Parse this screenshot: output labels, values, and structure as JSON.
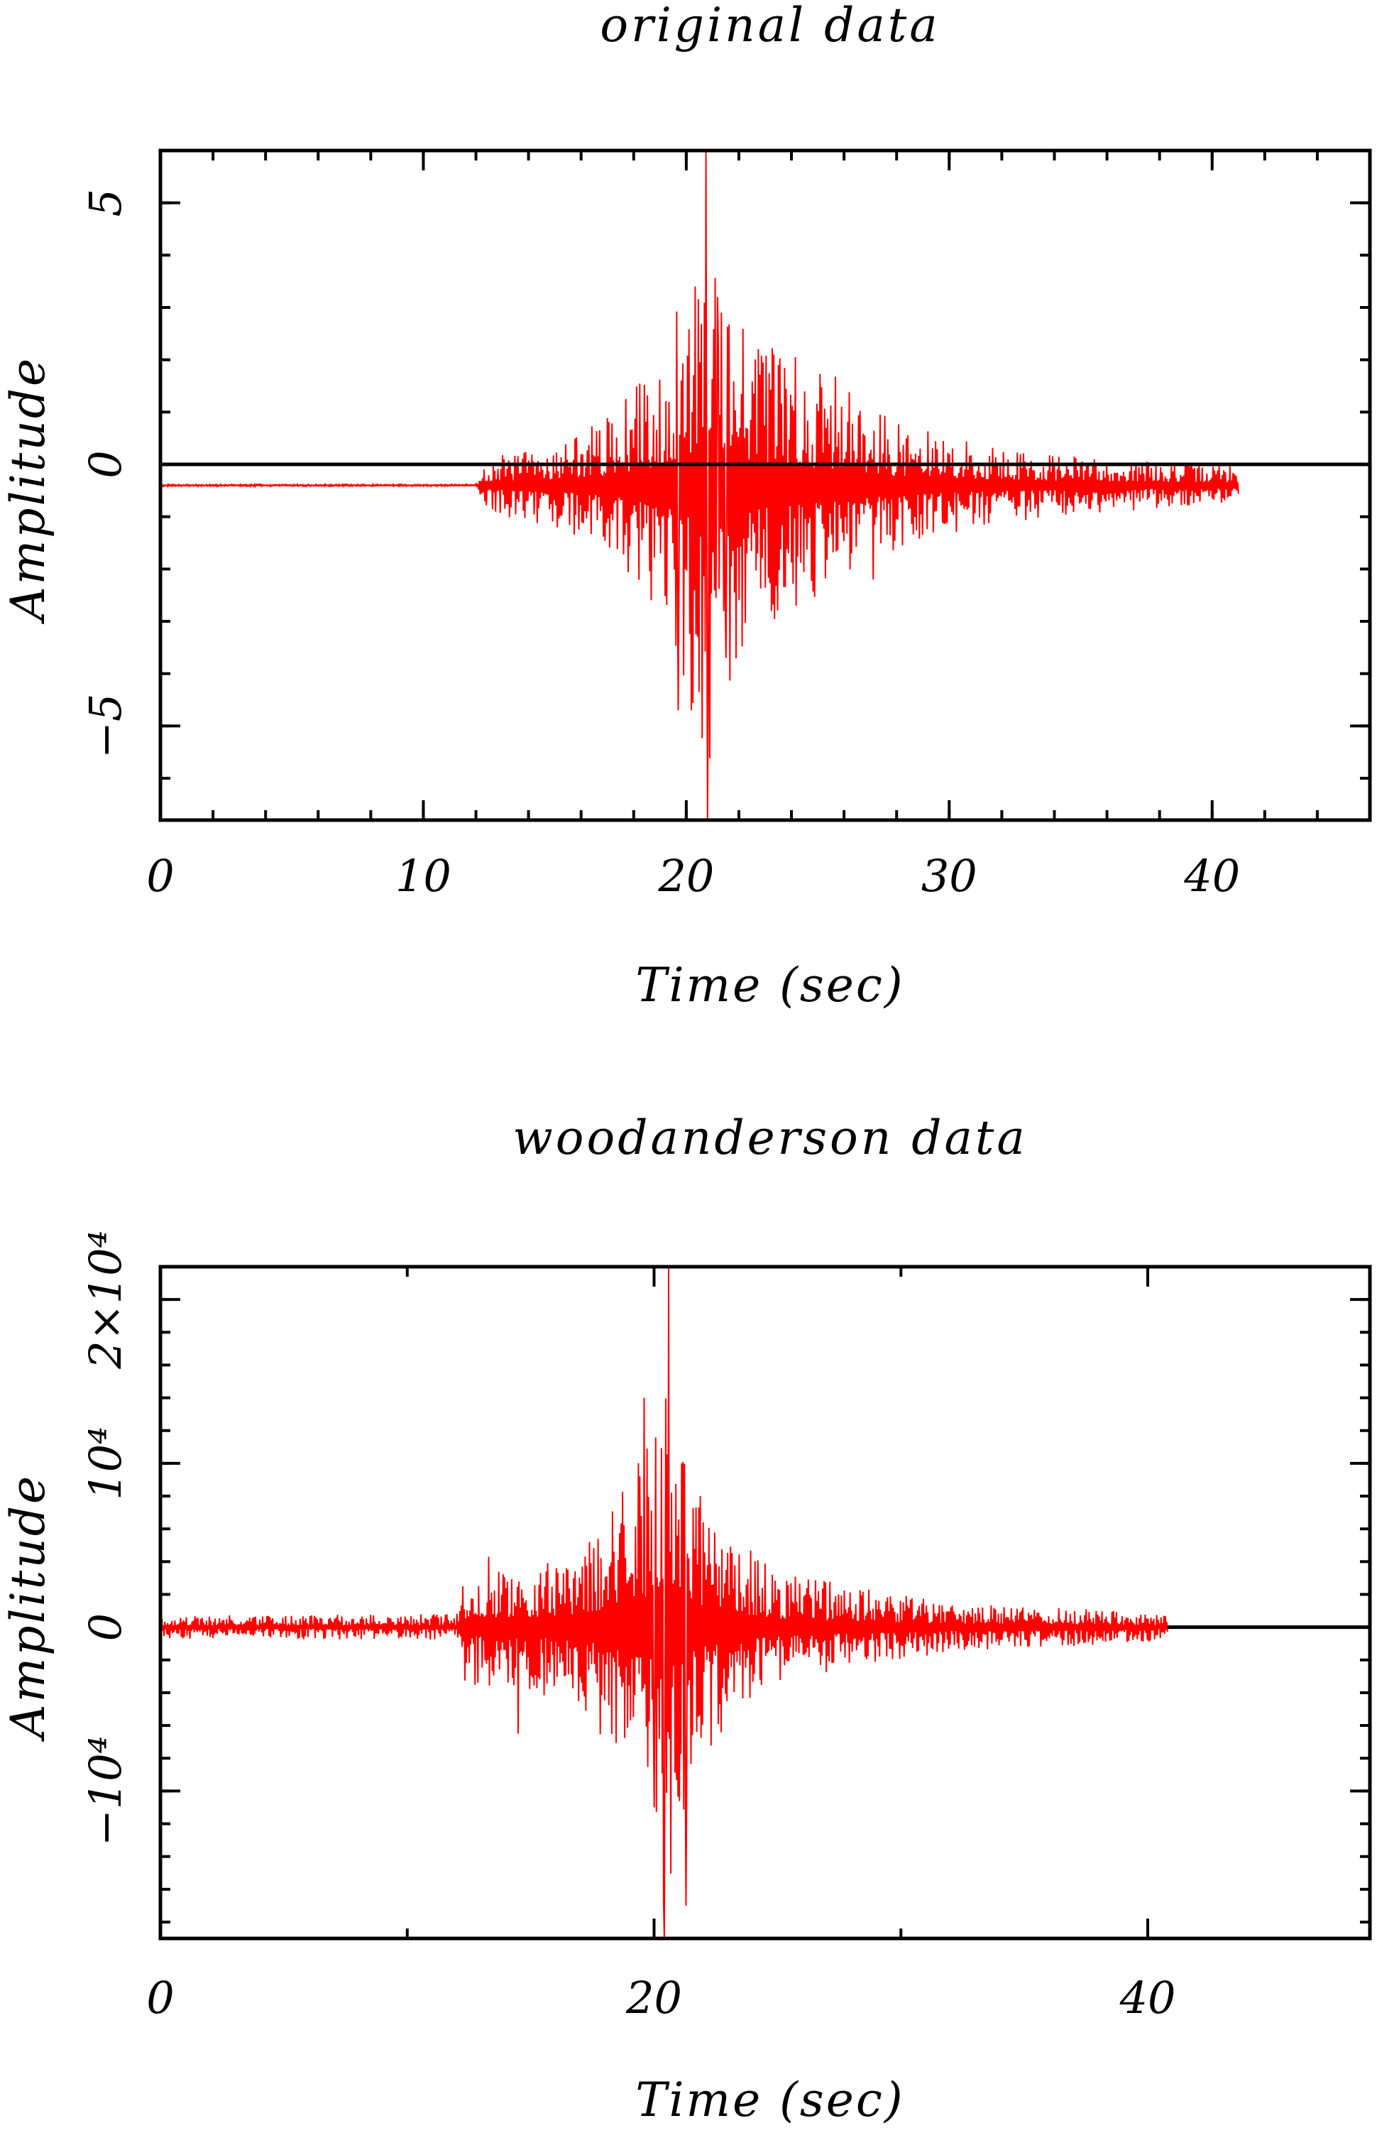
{
  "chart_data": [
    {
      "type": "line",
      "title": "original data",
      "xlabel": "Time (sec)",
      "ylabel": "Amplitude",
      "xlim": [
        0,
        46
      ],
      "ylim": [
        -6.8,
        6
      ],
      "x_ticks": [
        0,
        10,
        20,
        30,
        40
      ],
      "x_ticklabels": [
        "0",
        "10",
        "20",
        "30",
        "40"
      ],
      "x_minor_step": 2,
      "y_ticks": [
        -5,
        0,
        5
      ],
      "y_ticklabels": [
        "−5",
        "0",
        "5"
      ],
      "y_minor_step": 1,
      "zero_line": true,
      "grid": false,
      "series": [
        {
          "color": "#ff0000",
          "x_start": 0,
          "x_end": 41,
          "baseline": -0.4,
          "envelope_points": [
            [
              0,
              0.02
            ],
            [
              12,
              0.02
            ],
            [
              12.3,
              0.5
            ],
            [
              15,
              0.8
            ],
            [
              17,
              1.3
            ],
            [
              19,
              2.5
            ],
            [
              20,
              3.8
            ],
            [
              20.8,
              5.5
            ],
            [
              22,
              3.5
            ],
            [
              23,
              2.9
            ],
            [
              24,
              2.5
            ],
            [
              26,
              2.0
            ],
            [
              28,
              1.2
            ],
            [
              31,
              0.8
            ],
            [
              34,
              0.6
            ],
            [
              38,
              0.45
            ],
            [
              41,
              0.4
            ]
          ],
          "peaks": [
            {
              "x": 20.75,
              "y": 6.0
            },
            {
              "x": 20.8,
              "y": -6.8
            },
            {
              "x": 20.35,
              "y": 3.4
            },
            {
              "x": 19.7,
              "y": -4.7
            },
            {
              "x": 20.2,
              "y": -4.7
            },
            {
              "x": 21.5,
              "y": -3.7
            },
            {
              "x": 21.2,
              "y": 3.2
            },
            {
              "x": 27.1,
              "y": -2.2
            }
          ]
        }
      ]
    },
    {
      "type": "line",
      "title": "woodanderson data",
      "xlabel": "Time (sec)",
      "ylabel": "Amplitude",
      "xlim": [
        0,
        49
      ],
      "ylim": [
        -19000,
        22000
      ],
      "x_ticks": [
        0,
        20,
        40
      ],
      "x_ticklabels": [
        "0",
        "20",
        "40"
      ],
      "x_minor_step": 10,
      "y_ticks": [
        -10000,
        0,
        10000,
        20000
      ],
      "y_ticklabels": [
        "−10⁴",
        "0",
        "10⁴",
        "2×10⁴"
      ],
      "y_minor_step": 2000,
      "zero_line": true,
      "grid": false,
      "series": [
        {
          "color": "#ff0000",
          "x_start": 0,
          "x_end": 40.8,
          "baseline": 0,
          "envelope_points": [
            [
              0,
              700
            ],
            [
              12,
              800
            ],
            [
              12.2,
              3500
            ],
            [
              14,
              4000
            ],
            [
              16,
              4500
            ],
            [
              18,
              7000
            ],
            [
              19,
              9000
            ],
            [
              20,
              13000
            ],
            [
              20.5,
              18000
            ],
            [
              21.5,
              9000
            ],
            [
              23,
              6000
            ],
            [
              25,
              3500
            ],
            [
              28,
              2500
            ],
            [
              32,
              1500
            ],
            [
              36,
              1300
            ],
            [
              40,
              900
            ],
            [
              40.8,
              700
            ]
          ],
          "peaks": [
            {
              "x": 20.6,
              "y": 22000
            },
            {
              "x": 20.4,
              "y": -19000
            },
            {
              "x": 19.6,
              "y": 14000
            },
            {
              "x": 20.0,
              "y": -11000
            },
            {
              "x": 21.3,
              "y": -17000
            },
            {
              "x": 21.1,
              "y": 10000
            },
            {
              "x": 14.5,
              "y": -6500
            },
            {
              "x": 13.3,
              "y": 4300
            }
          ]
        }
      ]
    }
  ]
}
